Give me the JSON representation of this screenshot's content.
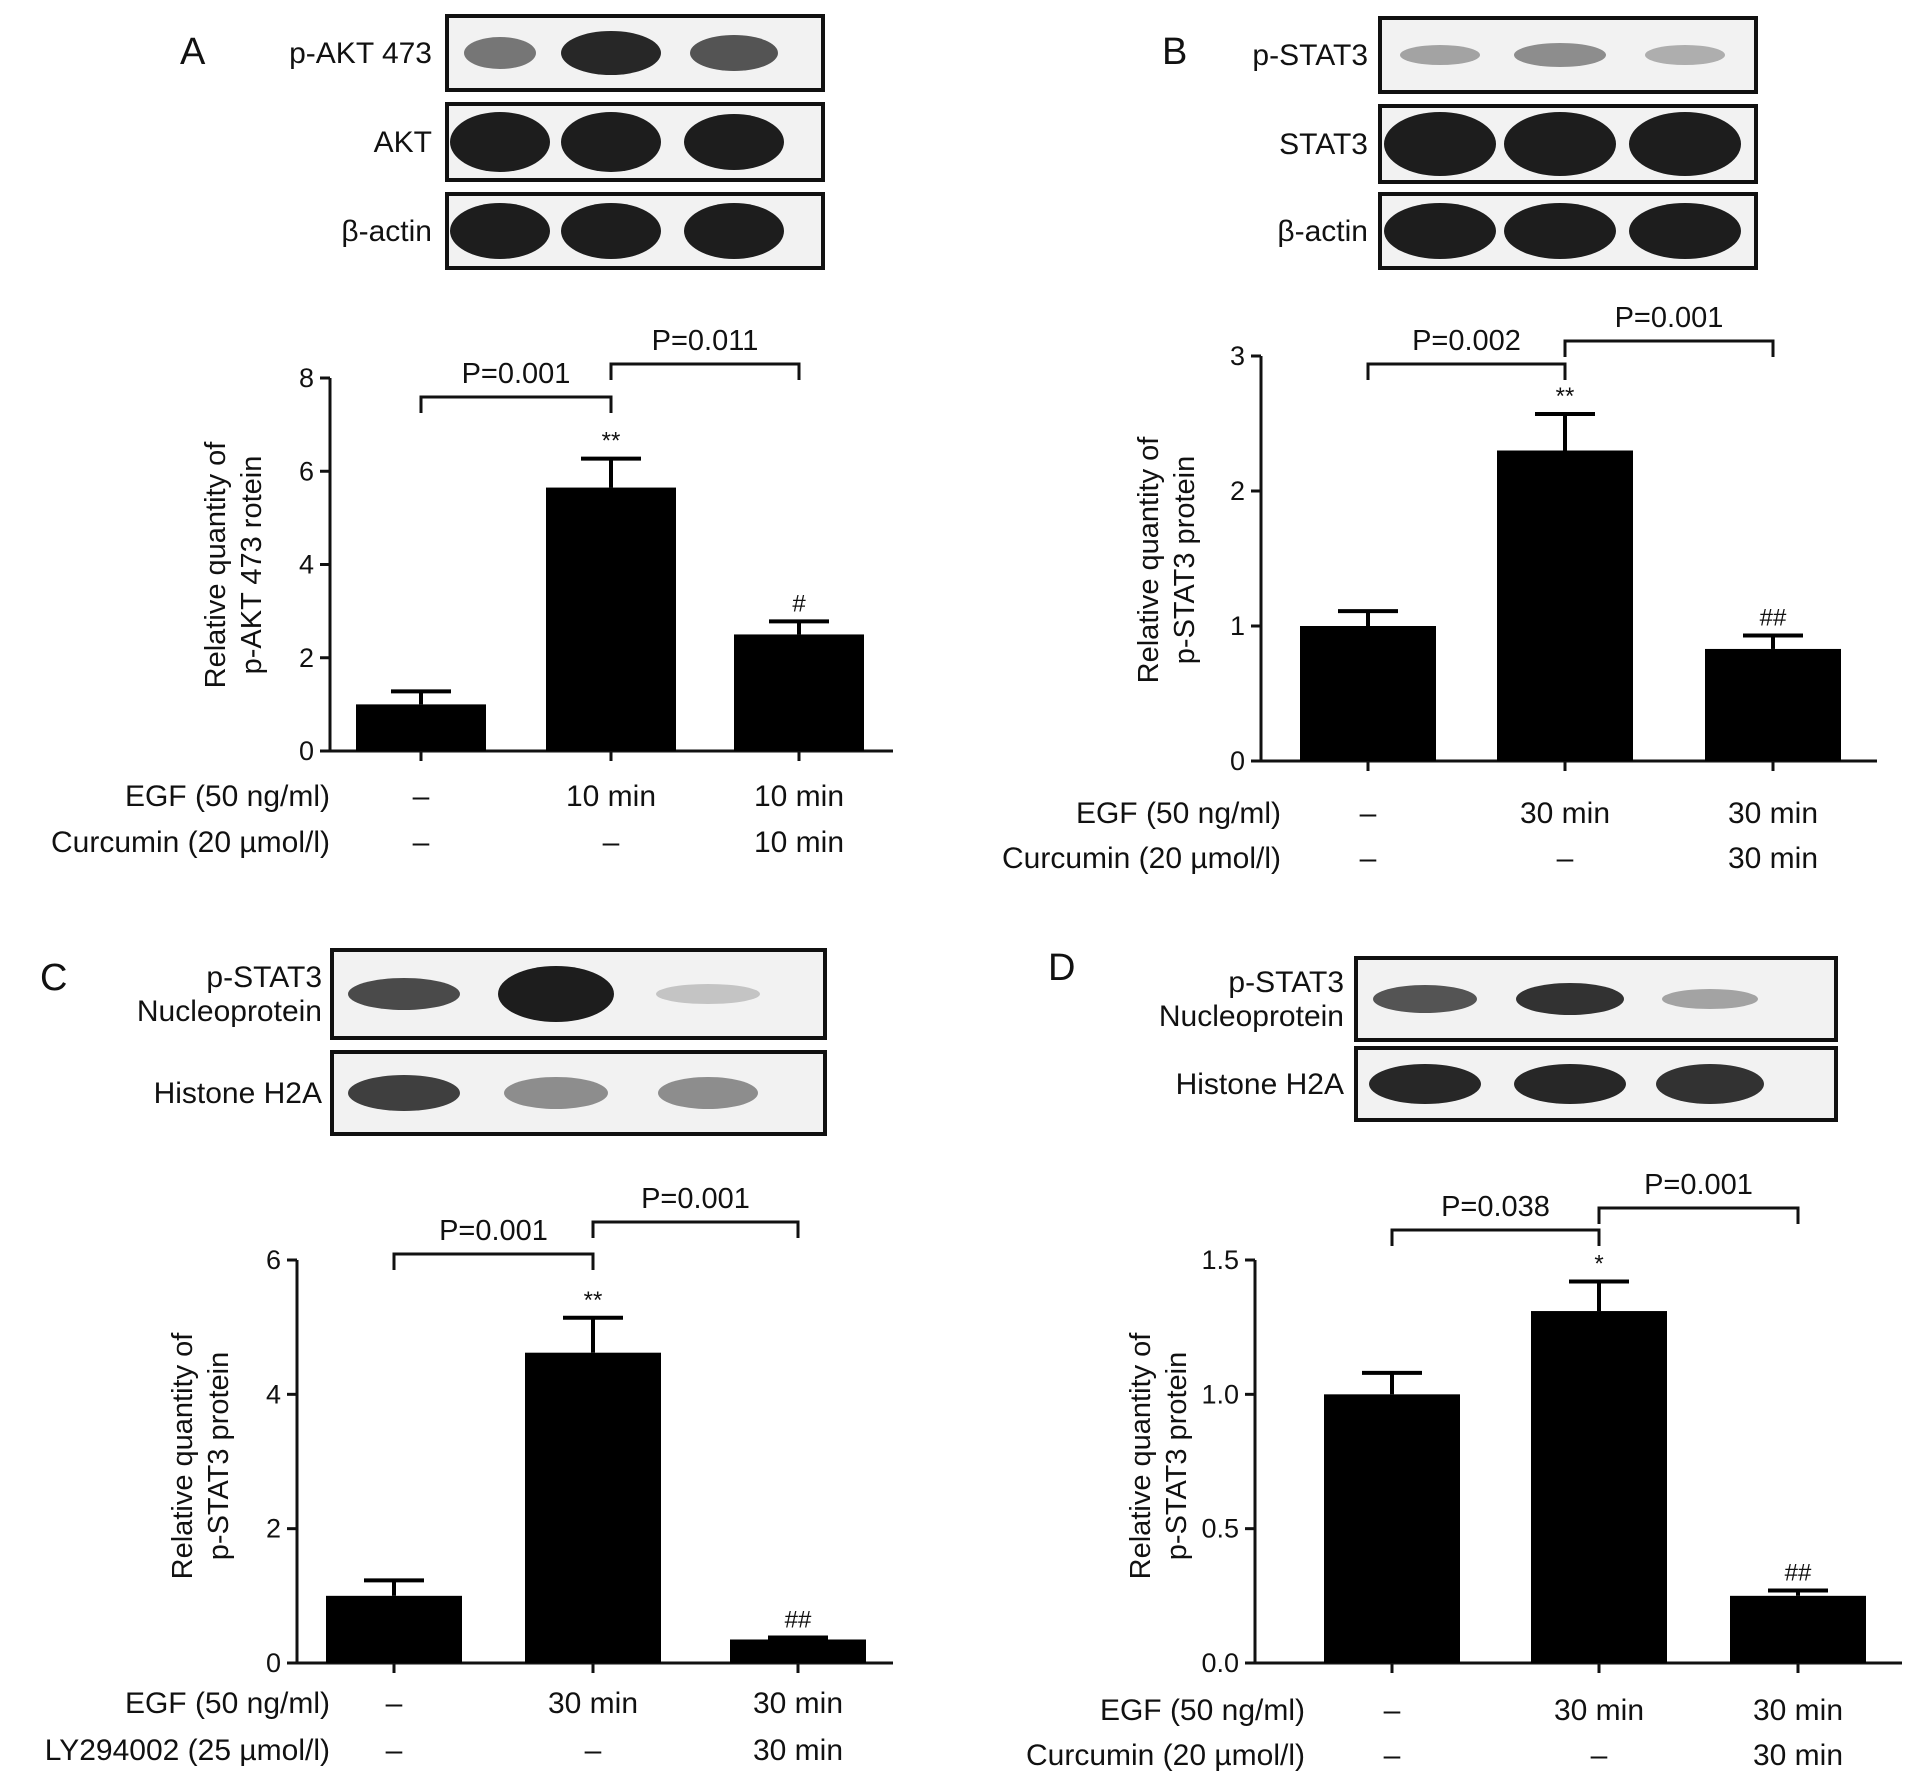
{
  "panels": [
    {
      "letter": "A",
      "blots": [
        "p-AKT 473",
        "AKT",
        "β-actin"
      ],
      "ylabel": [
        "Relative quantity of",
        "p-AKT 473   rotein"
      ],
      "treatments": [
        {
          "label": "EGF (50 ng/ml)",
          "values": [
            "–",
            "10 min",
            "10 min"
          ]
        },
        {
          "label": "Curcumin (20 µmol/l)",
          "values": [
            "–",
            "–",
            "10 min"
          ]
        }
      ],
      "comparisons": [
        {
          "from": 0,
          "to": 1,
          "label": "P=0.001"
        },
        {
          "from": 1,
          "to": 2,
          "label": "P=0.011"
        }
      ]
    },
    {
      "letter": "B",
      "blots": [
        "p-STAT3",
        "STAT3",
        "β-actin"
      ],
      "ylabel": [
        "Relative quantity of",
        "p-STAT3 protein"
      ],
      "treatments": [
        {
          "label": "EGF (50 ng/ml)",
          "values": [
            "–",
            "30 min",
            "30 min"
          ]
        },
        {
          "label": "Curcumin (20 µmol/l)",
          "values": [
            "–",
            "–",
            "30 min"
          ]
        }
      ],
      "comparisons": [
        {
          "from": 0,
          "to": 1,
          "label": "P=0.002"
        },
        {
          "from": 1,
          "to": 2,
          "label": "P=0.001"
        }
      ]
    },
    {
      "letter": "C",
      "blots": [
        "p-STAT3\nNucleoprotein",
        "Histone H2A"
      ],
      "ylabel": [
        "Relative quantity of",
        "p-STAT3 protein"
      ],
      "treatments": [
        {
          "label": "EGF (50 ng/ml)",
          "values": [
            "–",
            "30 min",
            "30 min"
          ]
        },
        {
          "label": "LY294002 (25 µmol/l)",
          "values": [
            "–",
            "–",
            "30 min"
          ]
        }
      ],
      "comparisons": [
        {
          "from": 0,
          "to": 1,
          "label": "P=0.001"
        },
        {
          "from": 1,
          "to": 2,
          "label": "P=0.001"
        }
      ]
    },
    {
      "letter": "D",
      "blots": [
        "p-STAT3\nNucleoprotein",
        "Histone H2A"
      ],
      "ylabel": [
        "Relative quantity of",
        "p-STAT3 protein"
      ],
      "treatments": [
        {
          "label": "EGF (50 ng/ml)",
          "values": [
            "–",
            "30 min",
            "30 min"
          ]
        },
        {
          "label": "Curcumin (20 µmol/l)",
          "values": [
            "–",
            "–",
            "30 min"
          ]
        }
      ],
      "comparisons": [
        {
          "from": 0,
          "to": 1,
          "label": "P=0.038"
        },
        {
          "from": 1,
          "to": 2,
          "label": "P=0.001"
        }
      ]
    }
  ],
  "chart_data": [
    {
      "type": "bar",
      "panel": "A",
      "ylabel": "Relative quantity of p-AKT 473   rotein",
      "ylim": [
        0,
        8
      ],
      "yticks": [
        "0",
        "2",
        "4",
        "6",
        "8"
      ],
      "values": [
        1.0,
        5.65,
        2.5
      ],
      "errors": [
        0.28,
        0.62,
        0.28
      ],
      "significance": [
        "",
        "**",
        "#"
      ]
    },
    {
      "type": "bar",
      "panel": "B",
      "ylabel": "Relative quantity of p-STAT3 protein",
      "ylim": [
        0,
        3
      ],
      "yticks": [
        "0",
        "1",
        "2",
        "3"
      ],
      "values": [
        1.0,
        2.3,
        0.83
      ],
      "errors": [
        0.11,
        0.27,
        0.1
      ],
      "significance": [
        "",
        "**",
        "##"
      ]
    },
    {
      "type": "bar",
      "panel": "C",
      "ylabel": "Relative quantity of p-STAT3 protein",
      "ylim": [
        0,
        6
      ],
      "yticks": [
        "0",
        "2",
        "4",
        "6"
      ],
      "values": [
        1.0,
        4.62,
        0.35
      ],
      "errors": [
        0.23,
        0.52,
        0.03
      ],
      "significance": [
        "",
        "**",
        "##"
      ]
    },
    {
      "type": "bar",
      "panel": "D",
      "ylabel": "Relative quantity of p-STAT3 protein",
      "ylim": [
        0,
        1.5
      ],
      "yticks": [
        "0.0",
        "0.5",
        "1.0",
        "1.5"
      ],
      "values": [
        1.0,
        1.31,
        0.25
      ],
      "errors": [
        0.08,
        0.11,
        0.02
      ],
      "significance": [
        "",
        "*",
        "##"
      ]
    }
  ]
}
